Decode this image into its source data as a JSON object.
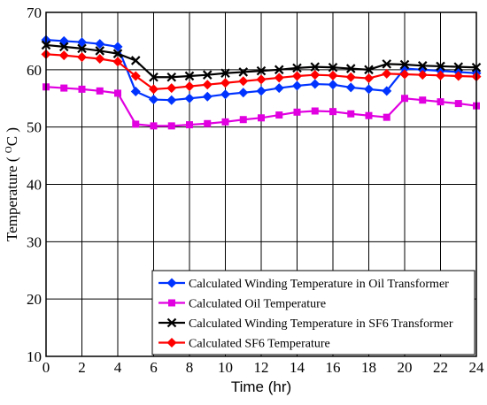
{
  "chart_data": {
    "type": "line",
    "title": "",
    "xlabel": "Time (hr)",
    "ylabel": "Temperature ( ",
    "ylabel_sup": "O",
    "ylabel_unit": "C )",
    "xlim": [
      0,
      24
    ],
    "ylim": [
      10,
      70
    ],
    "xticks": [
      0,
      2,
      4,
      6,
      8,
      10,
      12,
      14,
      16,
      18,
      20,
      22,
      24
    ],
    "yticks": [
      10,
      20,
      30,
      40,
      50,
      60,
      70
    ],
    "grid": true,
    "legend_position": "bottom-right",
    "x": [
      0,
      1,
      2,
      3,
      4,
      5,
      6,
      7,
      8,
      9,
      10,
      11,
      12,
      13,
      14,
      15,
      16,
      17,
      18,
      19,
      20,
      21,
      22,
      23,
      24
    ],
    "series": [
      {
        "name": "Calculated Winding Temperature in Oil Transformer",
        "color": "#0033ff",
        "marker": "diamond",
        "values": [
          65.2,
          65.0,
          64.8,
          64.5,
          64.0,
          56.2,
          54.8,
          54.7,
          55.0,
          55.3,
          55.7,
          56.0,
          56.3,
          56.8,
          57.2,
          57.5,
          57.4,
          56.9,
          56.6,
          56.3,
          60.2,
          60.0,
          59.8,
          59.6,
          59.4
        ]
      },
      {
        "name": "Calculated Oil Temperature",
        "color": "#e000e0",
        "marker": "square",
        "values": [
          57.0,
          56.8,
          56.6,
          56.3,
          55.9,
          50.5,
          50.2,
          50.2,
          50.4,
          50.6,
          50.9,
          51.3,
          51.6,
          52.1,
          52.6,
          52.8,
          52.7,
          52.3,
          52.0,
          51.7,
          55.0,
          54.7,
          54.4,
          54.1,
          53.7
        ]
      },
      {
        "name": "Calculated Winding Temperature in SF6 Transformer",
        "color": "#000000",
        "marker": "x",
        "values": [
          64.3,
          64.0,
          63.7,
          63.3,
          62.8,
          61.6,
          58.7,
          58.7,
          58.9,
          59.1,
          59.4,
          59.6,
          59.8,
          60.0,
          60.3,
          60.5,
          60.4,
          60.2,
          60.0,
          61.0,
          60.9,
          60.7,
          60.6,
          60.5,
          60.4
        ]
      },
      {
        "name": "Calculated SF6 Temperature",
        "color": "#ff0000",
        "marker": "diamond",
        "values": [
          62.7,
          62.5,
          62.2,
          61.9,
          61.4,
          58.9,
          56.6,
          56.8,
          57.1,
          57.4,
          57.7,
          58.0,
          58.3,
          58.6,
          58.9,
          59.1,
          59.0,
          58.7,
          58.5,
          59.3,
          59.2,
          59.1,
          59.0,
          58.9,
          58.8
        ]
      }
    ]
  }
}
